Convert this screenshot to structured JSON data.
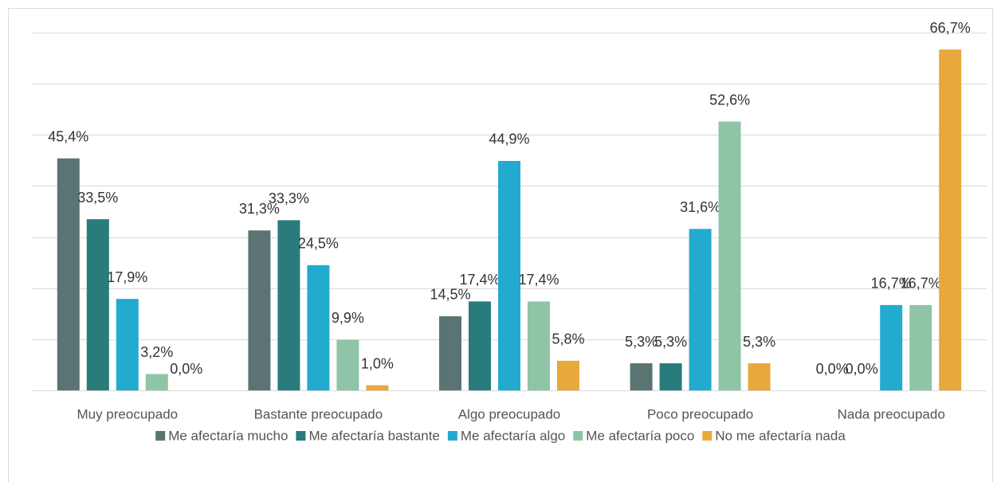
{
  "chart_data": {
    "type": "bar",
    "categories": [
      "Muy preocupado",
      "Bastante preocupado",
      "Algo preocupado",
      "Poco preocupado",
      "Nada preocupado"
    ],
    "series": [
      {
        "name": "Me afectaría mucho",
        "color": "#5a7474",
        "values": [
          45.4,
          31.3,
          14.5,
          5.3,
          0.0
        ],
        "value_labels": [
          "45,4%",
          "31,3%",
          "14,5%",
          "5,3%",
          "0,0%"
        ]
      },
      {
        "name": "Me afectaría bastante",
        "color": "#2a7b7c",
        "values": [
          33.5,
          33.3,
          17.4,
          5.3,
          0.0
        ],
        "value_labels": [
          "33,5%",
          "33,3%",
          "17,4%",
          "5,3%",
          "0,0%"
        ]
      },
      {
        "name": "Me afectaría algo",
        "color": "#23abcf",
        "values": [
          17.9,
          24.5,
          44.9,
          31.6,
          16.7
        ],
        "value_labels": [
          "17,9%",
          "24,5%",
          "44,9%",
          "31,6%",
          "16,7%"
        ]
      },
      {
        "name": "Me afectaría poco",
        "color": "#8fc4a7",
        "values": [
          3.2,
          9.9,
          17.4,
          52.6,
          16.7
        ],
        "value_labels": [
          "3,2%",
          "9,9%",
          "17,4%",
          "52,6%",
          "16,7%"
        ]
      },
      {
        "name": "No me afectaría nada",
        "color": "#e8a83b",
        "values": [
          0.0,
          1.0,
          5.8,
          5.3,
          66.7
        ],
        "value_labels": [
          "0,0%",
          "1,0%",
          "5,8%",
          "5,3%",
          "66,7%"
        ]
      }
    ],
    "ylim": [
      0,
      70
    ],
    "yticks": [
      0,
      10,
      20,
      30,
      40,
      50,
      60,
      70
    ],
    "grid": true,
    "legend": "bottom"
  }
}
